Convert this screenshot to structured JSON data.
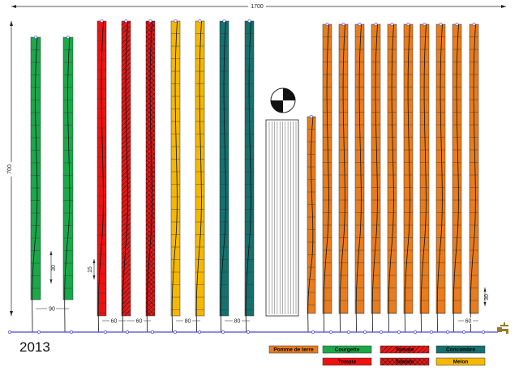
{
  "plan": {
    "year": "2013",
    "total_width_label": "1700",
    "total_height_label": "700",
    "bed_spacing_label_courgette": "90",
    "row_step_courgette": "30",
    "row_step_tomate": "15",
    "row_step_pomme": "30",
    "bed_spacing_tomate": "60",
    "bed_spacing_melon": "80",
    "bed_spacing_concombre": "80",
    "bed_spacing_pomme": "60",
    "beds": [
      {
        "crop": "courgette"
      },
      {
        "crop": "courgette"
      },
      {
        "crop": "tomate"
      },
      {
        "crop": "tomate_hatch"
      },
      {
        "crop": "tomate_cross"
      },
      {
        "crop": "melon"
      },
      {
        "crop": "melon"
      },
      {
        "crop": "concombre"
      },
      {
        "crop": "concombre"
      },
      {
        "crop": "pomme"
      },
      {
        "crop": "pomme"
      },
      {
        "crop": "pomme"
      },
      {
        "crop": "pomme"
      },
      {
        "crop": "pomme"
      },
      {
        "crop": "pomme"
      },
      {
        "crop": "pomme"
      },
      {
        "crop": "pomme"
      },
      {
        "crop": "pomme"
      },
      {
        "crop": "pomme"
      },
      {
        "crop": "pomme"
      }
    ]
  },
  "legend": [
    {
      "key": "pomme",
      "label": "Pomme de terre",
      "color": "#e87c1e",
      "pattern": "solid",
      "text_color": "#000000"
    },
    {
      "key": "courgette",
      "label": "Courgette",
      "color": "#1aa84a",
      "pattern": "solid",
      "text_color": "#000000"
    },
    {
      "key": "tomate_hatch",
      "label": "Tomate",
      "color": "#e41b1b",
      "pattern": "hatch",
      "text_color": "#000000"
    },
    {
      "key": "concombre",
      "label": "Concombre",
      "color": "#16706d",
      "pattern": "solid",
      "text_color": "#000000"
    },
    {
      "key": "tomate",
      "label": "Tomate",
      "color": "#ee1111",
      "pattern": "solid",
      "text_color": "#000000"
    },
    {
      "key": "tomate_cross",
      "label": "Tomate",
      "color": "#e41b1b",
      "pattern": "cross",
      "text_color": "#000000"
    },
    {
      "key": "melon",
      "label": "Melon",
      "color": "#f5b800",
      "pattern": "solid",
      "text_color": "#000000"
    }
  ],
  "colors": {
    "courgette": "#1aa84a",
    "tomate": "#ee1111",
    "melon": "#f5b800",
    "concombre": "#16706d",
    "pomme": "#e87c1e",
    "pipe": "#4b4bd8",
    "tap": "#9a7a2a"
  },
  "icons": {
    "compass": "quartered-circle-icon",
    "tap": "water-tap-icon"
  }
}
